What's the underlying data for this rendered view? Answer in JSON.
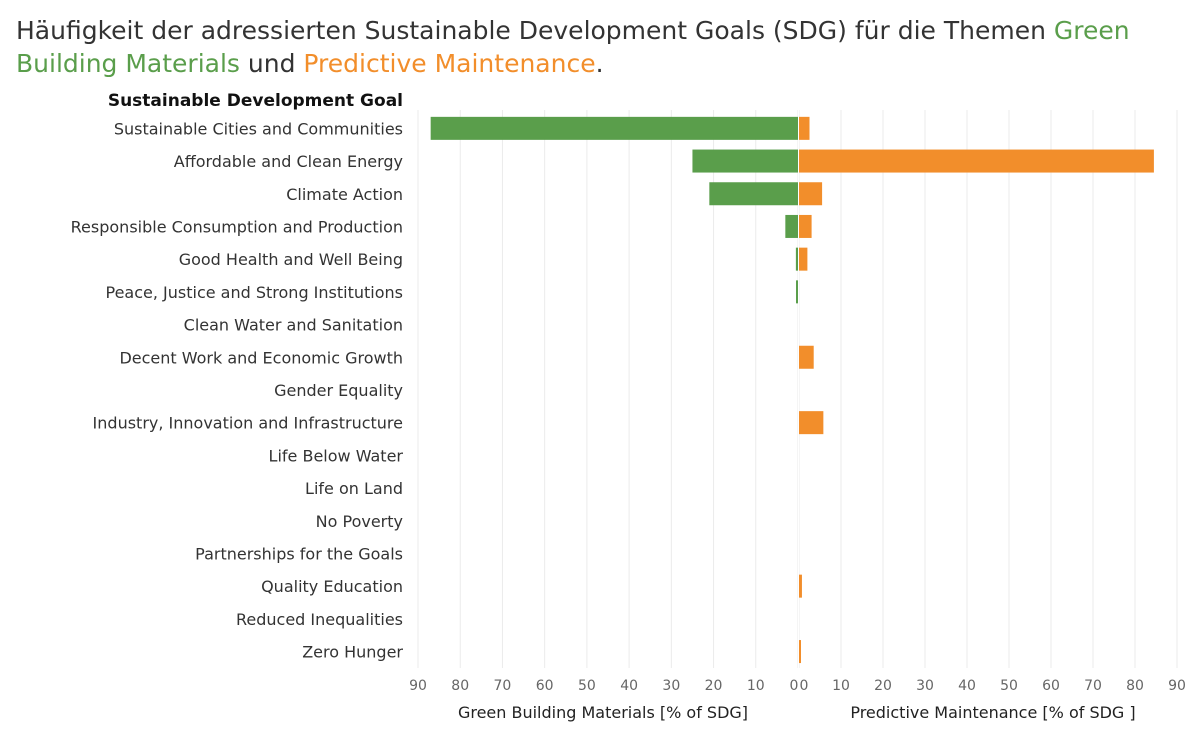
{
  "title": {
    "prefix": "Häufigkeit der adressierten Sustainable Development Goals (SDG) für die Themen ",
    "green": "Green Building Materials",
    "middle": " und ",
    "orange": "Predictive Maintenance",
    "suffix": "."
  },
  "colors": {
    "green": "#5a9e4b",
    "orange": "#f28e2b",
    "grid": "#ebebeb"
  },
  "chart_data": {
    "type": "bar",
    "orientation": "horizontal-diverging",
    "row_header": "Sustainable Development Goal",
    "categories": [
      "Sustainable Cities and Communities",
      "Affordable and Clean Energy",
      "Climate Action",
      "Responsible Consumption and Production",
      "Good Health and Well Being",
      "Peace, Justice and Strong Institutions",
      "Clean Water and Sanitation",
      "Decent Work and Economic Growth",
      "Gender Equality",
      "Industry, Innovation and Infrastructure",
      "Life Below Water",
      "Life on Land",
      "No Poverty",
      "Partnerships for the Goals",
      "Quality Education",
      "Reduced Inequalities",
      "Zero Hunger"
    ],
    "series": [
      {
        "key": "green",
        "values": [
          87,
          25,
          21,
          3,
          0.5,
          0.4,
          0,
          0,
          0,
          0,
          0,
          0,
          0,
          0,
          0,
          0,
          0
        ]
      },
      {
        "key": "orange",
        "values": [
          2.5,
          84.5,
          5.5,
          3,
          2,
          0,
          0,
          3.5,
          0,
          5.8,
          0,
          0,
          0,
          0,
          0.7,
          0,
          0.3
        ]
      }
    ],
    "left_axis": {
      "label": "Green Building Materials [% of SDG]",
      "range": [
        0,
        90
      ],
      "ticks": [
        90,
        80,
        70,
        60,
        50,
        40,
        30,
        20,
        10,
        0
      ]
    },
    "right_axis": {
      "label": "Predictive Maintenance [% of SDG ]",
      "range": [
        0,
        90
      ],
      "ticks": [
        0,
        10,
        20,
        30,
        40,
        50,
        60,
        70,
        80,
        90
      ]
    },
    "grid": true
  }
}
